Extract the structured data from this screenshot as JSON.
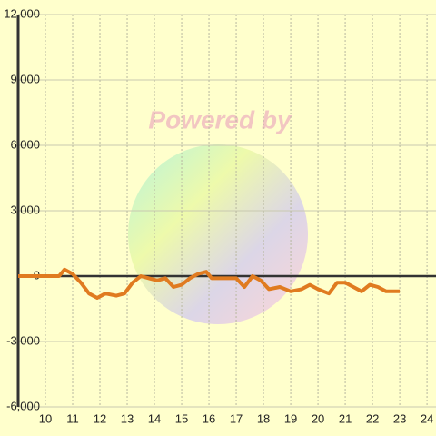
{
  "chart_data": {
    "type": "line",
    "watermark": "Powered by",
    "x": [
      9,
      10.5,
      10.7,
      11,
      11.3,
      11.6,
      11.9,
      12.2,
      12.6,
      12.9,
      13.2,
      13.5,
      13.8,
      14.1,
      14.4,
      14.7,
      15,
      15.3,
      15.6,
      15.9,
      16.1,
      16.5,
      17,
      17.3,
      17.6,
      17.9,
      18.2,
      18.6,
      19,
      19.4,
      19.7,
      20,
      20.4,
      20.7,
      21,
      21.3,
      21.6,
      21.9,
      22.2,
      22.5,
      23
    ],
    "series": [
      {
        "color": "#e07b20",
        "values": [
          0,
          0,
          300,
          100,
          -300,
          -800,
          -1000,
          -800,
          -900,
          -800,
          -300,
          0,
          -100,
          -200,
          -100,
          -500,
          -400,
          -100,
          100,
          200,
          -100,
          -100,
          -100,
          -500,
          0,
          -200,
          -600,
          -500,
          -700,
          -600,
          -400,
          -600,
          -800,
          -300,
          -300,
          -500,
          -700,
          -400,
          -500,
          -700,
          -700
        ]
      }
    ],
    "xlim": [
      9,
      24.33
    ],
    "xticks": [
      10,
      11,
      12,
      13,
      14,
      15,
      16,
      17,
      18,
      19,
      20,
      21,
      22,
      23,
      24
    ],
    "ylim": [
      -6000,
      12000
    ],
    "yticks": [
      {
        "value": -6000,
        "label": "-6,000"
      },
      {
        "value": -3000,
        "label": "-3,000"
      },
      0,
      {
        "value": 3000,
        "label": "3,000"
      },
      {
        "value": 6000,
        "label": "6,000"
      },
      {
        "value": 9000,
        "label": "9,000"
      },
      {
        "value": 12000,
        "label": "12,000"
      }
    ],
    "grid": true
  }
}
